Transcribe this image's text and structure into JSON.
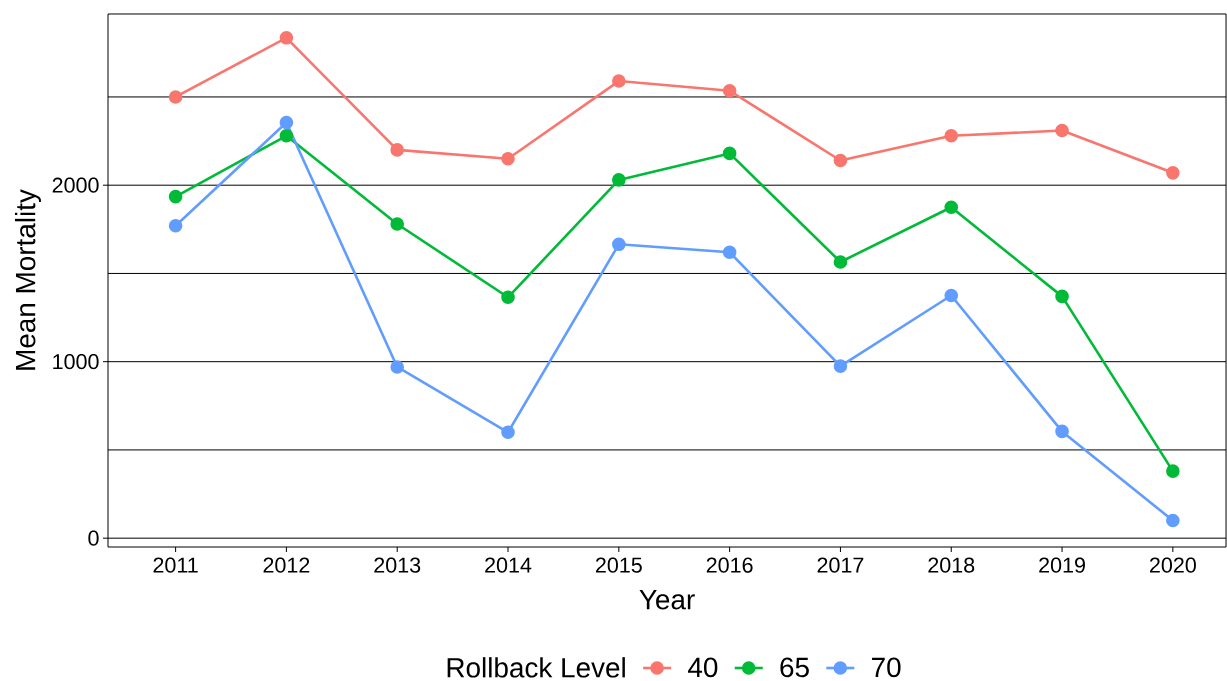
{
  "chart_data": {
    "type": "line",
    "xlabel": "Year",
    "ylabel": "Mean Mortality",
    "legend_title": "Rollback Level",
    "categories": [
      "2011",
      "2012",
      "2013",
      "2014",
      "2015",
      "2016",
      "2017",
      "2018",
      "2019",
      "2020"
    ],
    "series": [
      {
        "name": "40",
        "color": "#f8766d",
        "values": [
          2500,
          2835,
          2200,
          2150,
          2590,
          2535,
          2140,
          2280,
          2310,
          2070
        ]
      },
      {
        "name": "65",
        "color": "#00ba38",
        "values": [
          1935,
          2280,
          1780,
          1365,
          2030,
          2180,
          1565,
          1875,
          1370,
          380
        ]
      },
      {
        "name": "70",
        "color": "#619cff",
        "values": [
          1770,
          2355,
          970,
          600,
          1665,
          1620,
          975,
          1375,
          605,
          100
        ]
      }
    ],
    "ylim": [
      -50,
      2970
    ],
    "yticks": [
      0,
      {
        "value": 500,
        "label": null
      },
      1000,
      {
        "value": 1500,
        "label": null
      },
      2000,
      {
        "value": 2500,
        "label": null
      }
    ],
    "grid": "y",
    "legend": "bottom",
    "marker": "circle",
    "line_style": "solid"
  }
}
